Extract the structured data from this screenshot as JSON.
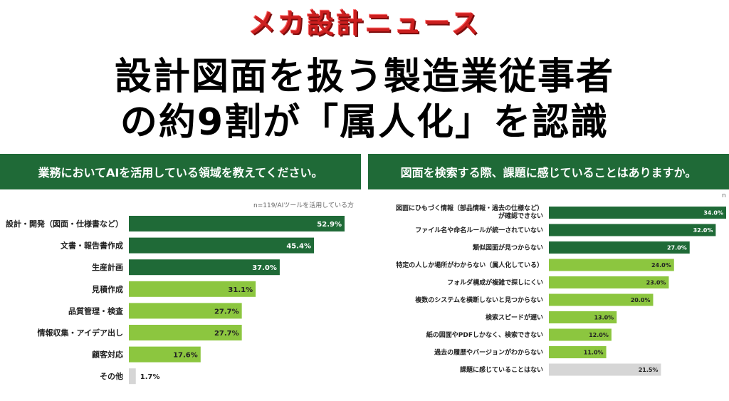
{
  "brand_title": "メカ設計ニュース",
  "headline": {
    "line1": "設計図面を扱う製造業従事者",
    "line2": "の約9割が「属人化」を認識"
  },
  "colors": {
    "dark_green": "#1f6a37",
    "light_green": "#8cc63f",
    "gray": "#d6d6d6",
    "brand_red": "#cc1f1f"
  },
  "chart_data": [
    {
      "type": "bar",
      "orientation": "horizontal",
      "title": "業務においてAIを活用している領域を教えてください。",
      "note": "n=119/AIツールを活用している方",
      "unit": "%",
      "categories": [
        "設計・開発（図面・仕様書など）",
        "文書・報告書作成",
        "生産計画",
        "見積作成",
        "品質管理・検査",
        "情報収集・アイデア出し",
        "顧客対応",
        "その他"
      ],
      "values": [
        52.9,
        45.4,
        37.0,
        31.1,
        27.7,
        27.7,
        17.6,
        1.7
      ],
      "value_labels": [
        "52.9%",
        "45.4%",
        "37.0%",
        "31.1%",
        "27.7%",
        "27.7%",
        "17.6%",
        "1.7%"
      ],
      "bar_colors": [
        "dark",
        "dark",
        "dark",
        "light",
        "light",
        "light",
        "light",
        "gray"
      ],
      "xlim": [
        0,
        60
      ]
    },
    {
      "type": "bar",
      "orientation": "horizontal",
      "title": "図面を検索する際、課題に感じていることはありますか。",
      "note": "n",
      "unit": "%",
      "categories": [
        "図面にひもづく情報（部品情報・過去の仕様など）が確認できない",
        "ファイル名や命名ルールが統一されていない",
        "類似図面が見つからない",
        "特定の人しか場所がわからない（属人化している）",
        "フォルダ構成が複雑で探しにくい",
        "複数のシステムを横断しないと見つからない",
        "検索スピードが遅い",
        "紙の図面やPDFしかなく、検索できない",
        "過去の履歴やバージョンがわからない",
        "課題に感じていることはない"
      ],
      "category_lines": [
        [
          "図面にひもづく情報（部品情報・過去の仕様など）",
          "が確認できない"
        ],
        [
          "ファイル名や命名ルールが統一されていない"
        ],
        [
          "類似図面が見つからない"
        ],
        [
          "特定の人しか場所がわからない（属人化している）"
        ],
        [
          "フォルダ構成が複雑で探しにくい"
        ],
        [
          "複数のシステムを横断しないと見つからない"
        ],
        [
          "検索スピードが遅い"
        ],
        [
          "紙の図面やPDFしかなく、検索できない"
        ],
        [
          "過去の履歴やバージョンがわからない"
        ],
        [
          "課題に感じていることはない"
        ]
      ],
      "values": [
        34.0,
        32.0,
        27.0,
        24.0,
        23.0,
        20.0,
        13.0,
        12.0,
        11.0,
        21.5
      ],
      "value_labels": [
        "34.0%",
        "32.0%",
        "27.0%",
        "24.0%",
        "23.0%",
        "20.0%",
        "13.0%",
        "12.0%",
        "11.0%",
        "21.5%"
      ],
      "bar_colors": [
        "dark",
        "dark",
        "dark",
        "light",
        "light",
        "light",
        "light",
        "light",
        "light",
        "gray"
      ],
      "xlim": [
        0,
        34
      ]
    }
  ]
}
